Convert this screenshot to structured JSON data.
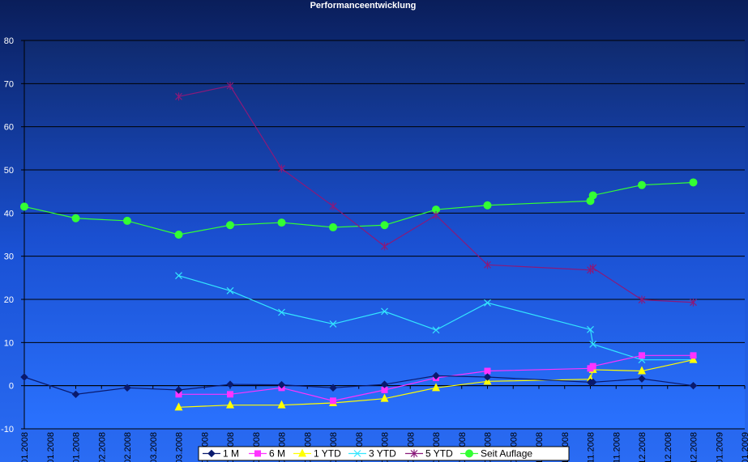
{
  "chart_data": {
    "type": "line",
    "title": "Performanceentwicklung",
    "xlabel": "",
    "ylabel": "",
    "ylim": [
      -10,
      80
    ],
    "yticks": [
      -10,
      0,
      10,
      20,
      30,
      40,
      50,
      60,
      70,
      80
    ],
    "grid": true,
    "legend_position": "bottom",
    "x_tick_labels": [
      "01.2008",
      "01.2008",
      "01.2008",
      "02.2008",
      "02.2008",
      "03.2008",
      "03.2008",
      "04.2008",
      "04.2008",
      "05.2008",
      "05.2008",
      "06.2008",
      "06.2008",
      "07.2008",
      "07.2008",
      "07.2008",
      "08.2008",
      "08.2008",
      "09.2008",
      "09.2008",
      "10.2008",
      "10.2008",
      "11.2008",
      "11.2008",
      "12.2008",
      "12.2008",
      "12.2008",
      "01.2009",
      "01.2009"
    ],
    "series": [
      {
        "name": "1 M",
        "color": "#0a1a6e",
        "marker": "diamond",
        "points": [
          [
            0,
            2
          ],
          [
            2,
            -2
          ],
          [
            4,
            -0.5
          ],
          [
            6,
            -1
          ],
          [
            8,
            0.3
          ],
          [
            10,
            0.2
          ],
          [
            12,
            -0.5
          ],
          [
            14,
            0.3
          ],
          [
            16,
            2.3
          ],
          [
            18,
            2
          ],
          [
            22,
            0.8
          ],
          [
            22.1,
            0.8
          ],
          [
            24,
            1.6
          ],
          [
            26,
            0
          ]
        ]
      },
      {
        "name": "6 M",
        "color": "#ff33ff",
        "marker": "square",
        "points": [
          [
            6,
            -2
          ],
          [
            8,
            -2
          ],
          [
            10,
            -0.5
          ],
          [
            12,
            -3.5
          ],
          [
            14,
            -1
          ],
          [
            16,
            1.8
          ],
          [
            18,
            3.4
          ],
          [
            22,
            4
          ],
          [
            22.1,
            4.5
          ],
          [
            24,
            7
          ],
          [
            26,
            7
          ]
        ]
      },
      {
        "name": "1 YTD",
        "color": "#ffff00",
        "marker": "triangle",
        "points": [
          [
            6,
            -5
          ],
          [
            8,
            -4.5
          ],
          [
            10,
            -4.5
          ],
          [
            12,
            -4
          ],
          [
            14,
            -3
          ],
          [
            16,
            -0.5
          ],
          [
            18,
            1
          ],
          [
            22,
            1.5
          ],
          [
            22.1,
            3.7
          ],
          [
            24,
            3.4
          ],
          [
            26,
            6
          ]
        ]
      },
      {
        "name": "3 YTD",
        "color": "#33e6ff",
        "marker": "x",
        "points": [
          [
            6,
            25.5
          ],
          [
            8,
            22
          ],
          [
            10,
            17
          ],
          [
            12,
            14.3
          ],
          [
            14,
            17.2
          ],
          [
            16,
            12.9
          ],
          [
            18,
            19.2
          ],
          [
            22,
            13
          ],
          [
            22.1,
            9.6
          ],
          [
            24,
            6
          ],
          [
            26,
            6
          ]
        ]
      },
      {
        "name": "5 YTD",
        "color": "#8a1a7a",
        "marker": "star",
        "points": [
          [
            6,
            67
          ],
          [
            8,
            69.5
          ],
          [
            10,
            50.3
          ],
          [
            12,
            41.6
          ],
          [
            14,
            32.3
          ],
          [
            16,
            39.5
          ],
          [
            18,
            28
          ],
          [
            22,
            26.8
          ],
          [
            22.1,
            27.3
          ],
          [
            24,
            19.9
          ],
          [
            26,
            19.3
          ]
        ]
      },
      {
        "name": "Seit Auflage",
        "color": "#33ff33",
        "marker": "circle",
        "points": [
          [
            0,
            41.5
          ],
          [
            2,
            38.8
          ],
          [
            4,
            38.2
          ],
          [
            6,
            35
          ],
          [
            8,
            37.2
          ],
          [
            10,
            37.8
          ],
          [
            12,
            36.7
          ],
          [
            14,
            37.2
          ],
          [
            16,
            40.8
          ],
          [
            18,
            41.8
          ],
          [
            22,
            42.8
          ],
          [
            22.1,
            44.1
          ],
          [
            24,
            46.5
          ],
          [
            26,
            47.1
          ]
        ]
      }
    ]
  }
}
